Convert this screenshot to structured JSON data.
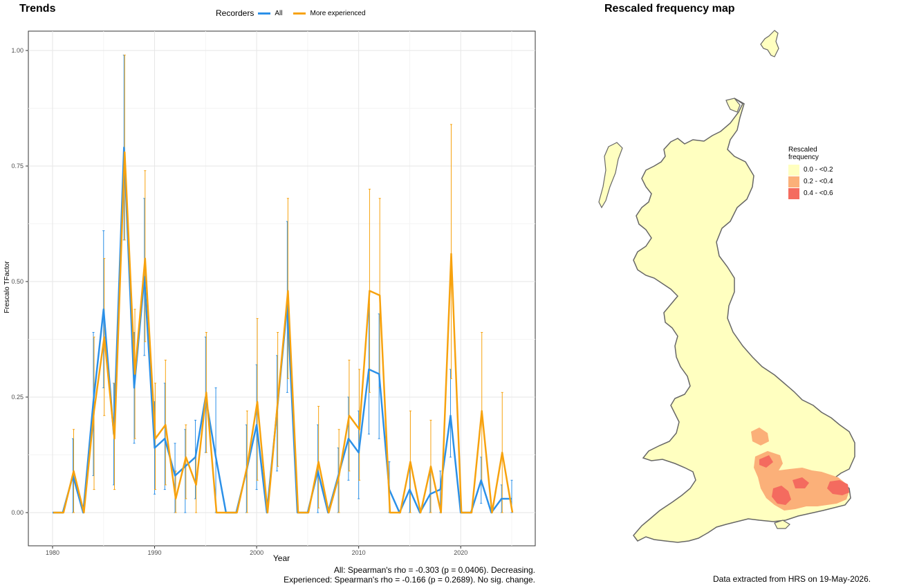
{
  "left_title": "Trends",
  "right_title": "Rescaled frequency map",
  "legend": {
    "title": "Recorders",
    "items": [
      {
        "label": "All",
        "color": "#2b90e8"
      },
      {
        "label": "More experienced",
        "color": "#f7a20e"
      }
    ]
  },
  "stats": {
    "line1": "All: Spearman's rho = -0.303 (p = 0.0406). Decreasing.",
    "line2": "Experienced: Spearman's rho = -0.166 (p = 0.2689). No sig. change."
  },
  "map": {
    "legend_title_line1": "Rescaled",
    "legend_title_line2": "frequency",
    "bins": [
      {
        "label": "0.0 - <0.2",
        "color": "#ffffc0"
      },
      {
        "label": "0.2 - <0.4",
        "color": "#fbb079"
      },
      {
        "label": "0.4 - <0.6",
        "color": "#f46b5f"
      }
    ],
    "caption": "Data extracted from HRS on 19-May-2026."
  },
  "chart_data": {
    "type": "line",
    "title": "Trends",
    "xlabel": "Year",
    "ylabel": "Frescalo TFactor",
    "xlim": [
      1980,
      2025
    ],
    "ylim": [
      0,
      1
    ],
    "x_ticks": [
      "1980",
      "1990",
      "2000",
      "2010",
      "2020"
    ],
    "y_ticks": [
      "0.00",
      "0.25",
      "0.50",
      "0.75",
      "1.00"
    ],
    "grid": true,
    "legend_position": "top",
    "x": [
      1980,
      1981,
      1982,
      1983,
      1984,
      1985,
      1986,
      1987,
      1988,
      1989,
      1990,
      1991,
      1992,
      1993,
      1994,
      1995,
      1996,
      1997,
      1998,
      1999,
      2000,
      2001,
      2002,
      2003,
      2004,
      2005,
      2006,
      2007,
      2008,
      2009,
      2010,
      2011,
      2012,
      2013,
      2014,
      2015,
      2016,
      2017,
      2018,
      2019,
      2020,
      2021,
      2022,
      2023,
      2024,
      2025
    ],
    "series": [
      {
        "name": "All",
        "color": "#2b90e8",
        "values": [
          0,
          0,
          0.08,
          0,
          0.24,
          0.44,
          0.17,
          0.79,
          0.27,
          0.51,
          0.14,
          0.16,
          0.08,
          0.1,
          0.12,
          0.25,
          0.12,
          0,
          0,
          0.09,
          0.19,
          0,
          0.22,
          0.45,
          0,
          0,
          0.09,
          0,
          0.08,
          0.16,
          0.13,
          0.31,
          0.3,
          0.05,
          0,
          0.05,
          0,
          0.04,
          0.05,
          0.21,
          0,
          0,
          0.07,
          0,
          0.03,
          0.03
        ],
        "lower": [
          0,
          0,
          0,
          0,
          0.08,
          0.27,
          0.06,
          0.59,
          0.15,
          0.34,
          0.04,
          0.05,
          0,
          0,
          0.03,
          0.13,
          0,
          0,
          0,
          0,
          0.05,
          0,
          0.09,
          0.26,
          0,
          0,
          0,
          0,
          0,
          0.07,
          0.03,
          0.17,
          0.16,
          0,
          0,
          0,
          0,
          0,
          0,
          0.12,
          0,
          0,
          0.02,
          0,
          0,
          0
        ],
        "upper": [
          0,
          0,
          0.16,
          0,
          0.39,
          0.61,
          0.28,
          0.99,
          0.39,
          0.68,
          0.24,
          0.28,
          0.15,
          0.18,
          0.2,
          0.38,
          0.27,
          0,
          0,
          0.19,
          0.32,
          0,
          0.34,
          0.63,
          0,
          0,
          0.19,
          0,
          0.14,
          0.25,
          0.22,
          0.45,
          0.43,
          0.11,
          0,
          0.1,
          0,
          0.09,
          0.09,
          0.31,
          0,
          0,
          0.12,
          0,
          0.06,
          0.07
        ]
      },
      {
        "name": "More experienced",
        "color": "#f7a20e",
        "values": [
          0,
          0,
          0.09,
          0,
          0.22,
          0.38,
          0.16,
          0.78,
          0.3,
          0.55,
          0.16,
          0.19,
          0.03,
          0.12,
          0.06,
          0.26,
          0,
          0,
          0,
          0.1,
          0.24,
          0,
          0.24,
          0.48,
          0,
          0,
          0.11,
          0,
          0.08,
          0.21,
          0.18,
          0.48,
          0.47,
          0,
          0,
          0.11,
          0,
          0.1,
          0,
          0.56,
          0,
          0,
          0.22,
          0,
          0.13,
          0
        ],
        "lower": [
          0,
          0,
          0,
          0,
          0.05,
          0.21,
          0.05,
          0.59,
          0.16,
          0.37,
          0.05,
          0.06,
          0,
          0.03,
          0,
          0.13,
          0,
          0,
          0,
          0,
          0.07,
          0,
          0.1,
          0.29,
          0,
          0,
          0.01,
          0,
          0,
          0.09,
          0.07,
          0.26,
          0.27,
          0,
          0,
          0,
          0,
          0,
          0,
          0.29,
          0,
          0,
          0.06,
          0,
          0,
          0
        ],
        "upper": [
          0,
          0,
          0.18,
          0,
          0.38,
          0.55,
          0.28,
          0.99,
          0.44,
          0.74,
          0.28,
          0.33,
          0.09,
          0.19,
          0.13,
          0.39,
          0,
          0,
          0,
          0.22,
          0.42,
          0,
          0.39,
          0.68,
          0,
          0,
          0.23,
          0,
          0.18,
          0.33,
          0.31,
          0.7,
          0.68,
          0,
          0,
          0.22,
          0,
          0.2,
          0,
          0.84,
          0,
          0,
          0.39,
          0,
          0.26,
          0
        ]
      }
    ]
  }
}
